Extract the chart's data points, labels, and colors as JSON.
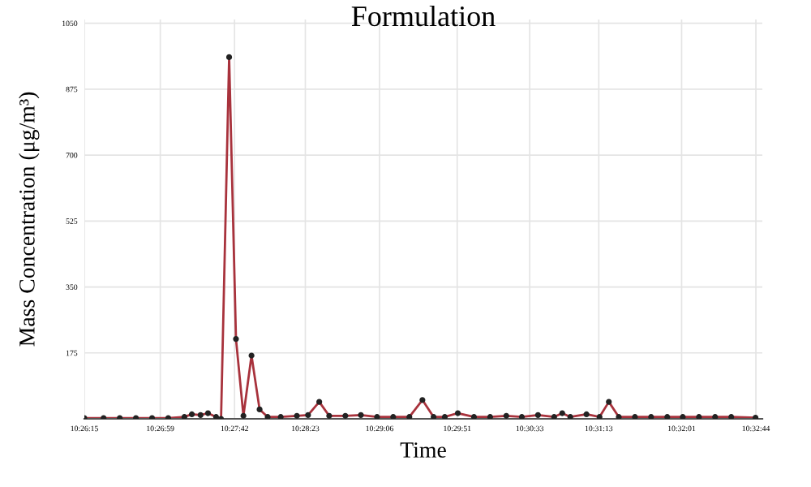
{
  "chart_data": {
    "type": "line",
    "title": "Formulation",
    "xlabel": "Time",
    "ylabel": "Mass Concentration (μg/m³)",
    "x": [
      10.4375,
      10.4406,
      10.4432,
      10.4458,
      10.4484,
      10.451,
      10.4536,
      10.4548,
      10.4562,
      10.4574,
      10.4587,
      10.4595,
      10.4608,
      10.4619,
      10.4631,
      10.4644,
      10.4657,
      10.467,
      10.4691,
      10.4717,
      10.4735,
      10.4753,
      10.4769,
      10.4795,
      10.482,
      10.4846,
      10.4872,
      10.4898,
      10.4919,
      10.4937,
      10.4955,
      10.4976,
      10.5002,
      10.5028,
      10.5054,
      10.5079,
      10.5105,
      10.5131,
      10.5144,
      10.5157,
      10.5183,
      10.5204,
      10.5219,
      10.5235,
      10.5261,
      10.5287,
      10.5313,
      10.5338,
      10.5364,
      10.539,
      10.5416,
      10.5455
    ],
    "series": [
      {
        "color": "#a8323c",
        "values": [
          2,
          2,
          2,
          2,
          2,
          2,
          5,
          12,
          10,
          15,
          5,
          0,
          960,
          212,
          8,
          168,
          25,
          5,
          5,
          8,
          10,
          45,
          8,
          8,
          10,
          5,
          5,
          5,
          50,
          5,
          5,
          15,
          5,
          5,
          8,
          5,
          10,
          5,
          15,
          5,
          12,
          5,
          45,
          5,
          5,
          5,
          5,
          5,
          5,
          5,
          5,
          3
        ]
      }
    ],
    "xlim": [
      10.4375,
      10.5466
    ],
    "ylim": [
      0,
      1060
    ],
    "xticks": [
      {
        "value": 10.4375,
        "label": "10:26:15"
      },
      {
        "value": 10.44972,
        "label": "10:26:59"
      },
      {
        "value": 10.46167,
        "label": "10:27:42"
      },
      {
        "value": 10.47306,
        "label": "10:28:23"
      },
      {
        "value": 10.485,
        "label": "10:29:06"
      },
      {
        "value": 10.4975,
        "label": "10:29:51"
      },
      {
        "value": 10.50917,
        "label": "10:30:33"
      },
      {
        "value": 10.52028,
        "label": "10:31:13"
      },
      {
        "value": 10.53361,
        "label": "10:32:01"
      },
      {
        "value": 10.54556,
        "label": "10:32:44"
      }
    ],
    "yticks": [
      175,
      350,
      525,
      700,
      875,
      1050
    ],
    "grid": true,
    "marker": "circle",
    "line_style": "solid"
  }
}
